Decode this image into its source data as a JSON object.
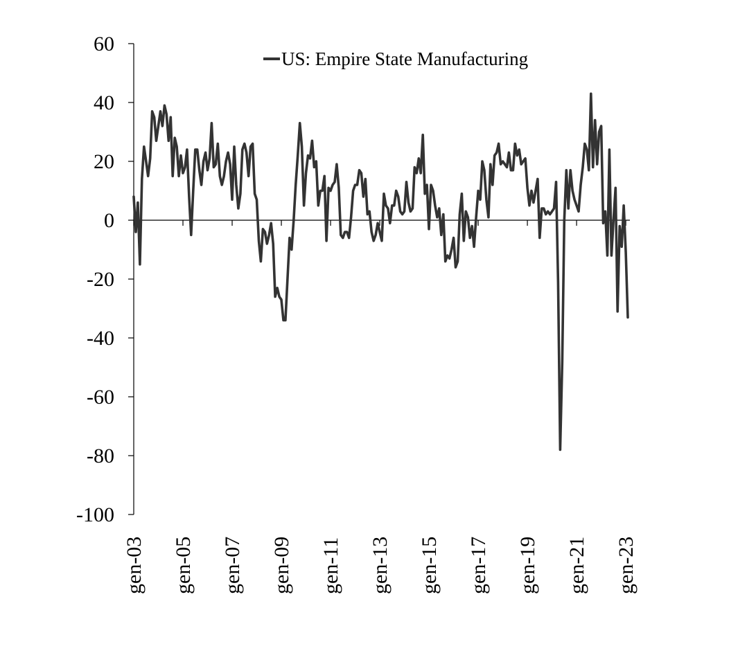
{
  "chart_data": {
    "type": "line",
    "title": "",
    "xlabel": "",
    "ylabel": "",
    "ylim": [
      -100,
      60
    ],
    "yticks": [
      60,
      40,
      20,
      0,
      -20,
      -40,
      -60,
      -80,
      -100
    ],
    "xlim": [
      "2003-01",
      "2023-03"
    ],
    "xticks": [
      "gen-03",
      "gen-05",
      "gen-07",
      "gen-09",
      "gen-11",
      "gen-13",
      "gen-15",
      "gen-17",
      "gen-19",
      "gen-21",
      "gen-23"
    ],
    "grid": false,
    "legend_position": "top",
    "series": [
      {
        "name": "US: Empire State Manufacturing",
        "color": "#333333",
        "points": [
          [
            "2003-01",
            8
          ],
          [
            "2003-02",
            -4
          ],
          [
            "2003-03",
            6
          ],
          [
            "2003-04",
            -15
          ],
          [
            "2003-05",
            14
          ],
          [
            "2003-06",
            25
          ],
          [
            "2003-07",
            20
          ],
          [
            "2003-08",
            15
          ],
          [
            "2003-09",
            21
          ],
          [
            "2003-10",
            37
          ],
          [
            "2003-11",
            35
          ],
          [
            "2003-12",
            27
          ],
          [
            "2004-01",
            32
          ],
          [
            "2004-02",
            37
          ],
          [
            "2004-03",
            32
          ],
          [
            "2004-04",
            39
          ],
          [
            "2004-05",
            36
          ],
          [
            "2004-06",
            27
          ],
          [
            "2004-07",
            35
          ],
          [
            "2004-08",
            15
          ],
          [
            "2004-09",
            28
          ],
          [
            "2004-10",
            25
          ],
          [
            "2004-11",
            15
          ],
          [
            "2004-12",
            22
          ],
          [
            "2005-01",
            16
          ],
          [
            "2005-02",
            18
          ],
          [
            "2005-03",
            24
          ],
          [
            "2005-04",
            8
          ],
          [
            "2005-05",
            -5
          ],
          [
            "2005-06",
            10
          ],
          [
            "2005-07",
            24
          ],
          [
            "2005-08",
            24
          ],
          [
            "2005-09",
            17
          ],
          [
            "2005-10",
            12
          ],
          [
            "2005-11",
            20
          ],
          [
            "2005-12",
            23
          ],
          [
            "2006-01",
            17
          ],
          [
            "2006-02",
            21
          ],
          [
            "2006-03",
            33
          ],
          [
            "2006-04",
            18
          ],
          [
            "2006-05",
            19
          ],
          [
            "2006-06",
            26
          ],
          [
            "2006-07",
            15
          ],
          [
            "2006-08",
            12
          ],
          [
            "2006-09",
            15
          ],
          [
            "2006-10",
            20
          ],
          [
            "2006-11",
            23
          ],
          [
            "2006-12",
            19
          ],
          [
            "2007-01",
            7
          ],
          [
            "2007-02",
            25
          ],
          [
            "2007-03",
            12
          ],
          [
            "2007-04",
            4
          ],
          [
            "2007-05",
            9
          ],
          [
            "2007-06",
            24
          ],
          [
            "2007-07",
            26
          ],
          [
            "2007-08",
            23
          ],
          [
            "2007-09",
            15
          ],
          [
            "2007-10",
            25
          ],
          [
            "2007-11",
            26
          ],
          [
            "2007-12",
            9
          ],
          [
            "2008-01",
            7
          ],
          [
            "2008-02",
            -7
          ],
          [
            "2008-03",
            -14
          ],
          [
            "2008-04",
            -3
          ],
          [
            "2008-05",
            -4
          ],
          [
            "2008-06",
            -8
          ],
          [
            "2008-07",
            -5
          ],
          [
            "2008-08",
            -1
          ],
          [
            "2008-09",
            -8
          ],
          [
            "2008-10",
            -26
          ],
          [
            "2008-11",
            -23
          ],
          [
            "2008-12",
            -26
          ],
          [
            "2009-01",
            -27
          ],
          [
            "2009-02",
            -34
          ],
          [
            "2009-03",
            -34
          ],
          [
            "2009-04",
            -20
          ],
          [
            "2009-05",
            -6
          ],
          [
            "2009-06",
            -10
          ],
          [
            "2009-07",
            0
          ],
          [
            "2009-08",
            12
          ],
          [
            "2009-09",
            22
          ],
          [
            "2009-10",
            33
          ],
          [
            "2009-11",
            25
          ],
          [
            "2009-12",
            5
          ],
          [
            "2010-01",
            16
          ],
          [
            "2010-02",
            22
          ],
          [
            "2010-03",
            21
          ],
          [
            "2010-04",
            27
          ],
          [
            "2010-05",
            18
          ],
          [
            "2010-06",
            20
          ],
          [
            "2010-07",
            5
          ],
          [
            "2010-08",
            10
          ],
          [
            "2010-09",
            10
          ],
          [
            "2010-10",
            15
          ],
          [
            "2010-11",
            -7
          ],
          [
            "2010-12",
            11
          ],
          [
            "2011-01",
            10
          ],
          [
            "2011-02",
            12
          ],
          [
            "2011-03",
            13
          ],
          [
            "2011-04",
            19
          ],
          [
            "2011-05",
            11
          ],
          [
            "2011-06",
            -5
          ],
          [
            "2011-07",
            -6
          ],
          [
            "2011-08",
            -4
          ],
          [
            "2011-09",
            -4
          ],
          [
            "2011-10",
            -6
          ],
          [
            "2011-11",
            1
          ],
          [
            "2011-12",
            10
          ],
          [
            "2012-01",
            12
          ],
          [
            "2012-02",
            12
          ],
          [
            "2012-03",
            17
          ],
          [
            "2012-04",
            16
          ],
          [
            "2012-05",
            8
          ],
          [
            "2012-06",
            14
          ],
          [
            "2012-07",
            2
          ],
          [
            "2012-08",
            3
          ],
          [
            "2012-09",
            -4
          ],
          [
            "2012-10",
            -7
          ],
          [
            "2012-11",
            -5
          ],
          [
            "2012-12",
            -1
          ],
          [
            "2013-01",
            -4
          ],
          [
            "2013-02",
            -7
          ],
          [
            "2013-03",
            9
          ],
          [
            "2013-04",
            5
          ],
          [
            "2013-05",
            4
          ],
          [
            "2013-06",
            -1
          ],
          [
            "2013-07",
            5
          ],
          [
            "2013-08",
            5
          ],
          [
            "2013-09",
            10
          ],
          [
            "2013-10",
            8
          ],
          [
            "2013-11",
            3
          ],
          [
            "2013-12",
            2
          ],
          [
            "2014-01",
            3
          ],
          [
            "2014-02",
            13
          ],
          [
            "2014-03",
            6
          ],
          [
            "2014-04",
            3
          ],
          [
            "2014-05",
            4
          ],
          [
            "2014-06",
            18
          ],
          [
            "2014-07",
            16
          ],
          [
            "2014-08",
            21
          ],
          [
            "2014-09",
            16
          ],
          [
            "2014-10",
            29
          ],
          [
            "2014-11",
            9
          ],
          [
            "2014-12",
            12
          ],
          [
            "2015-01",
            -3
          ],
          [
            "2015-02",
            12
          ],
          [
            "2015-03",
            10
          ],
          [
            "2015-04",
            5
          ],
          [
            "2015-05",
            1
          ],
          [
            "2015-06",
            4
          ],
          [
            "2015-07",
            -5
          ],
          [
            "2015-08",
            2
          ],
          [
            "2015-09",
            -14
          ],
          [
            "2015-10",
            -12
          ],
          [
            "2015-11",
            -13
          ],
          [
            "2015-12",
            -10
          ],
          [
            "2016-01",
            -6
          ],
          [
            "2016-02",
            -16
          ],
          [
            "2016-03",
            -14
          ],
          [
            "2016-04",
            2
          ],
          [
            "2016-05",
            9
          ],
          [
            "2016-06",
            -7
          ],
          [
            "2016-07",
            3
          ],
          [
            "2016-08",
            1
          ],
          [
            "2016-09",
            -6
          ],
          [
            "2016-10",
            -2
          ],
          [
            "2016-11",
            -9
          ],
          [
            "2016-12",
            1
          ],
          [
            "2017-01",
            10
          ],
          [
            "2017-02",
            7
          ],
          [
            "2017-03",
            20
          ],
          [
            "2017-04",
            17
          ],
          [
            "2017-05",
            7
          ],
          [
            "2017-06",
            1
          ],
          [
            "2017-07",
            19
          ],
          [
            "2017-08",
            12
          ],
          [
            "2017-09",
            22
          ],
          [
            "2017-10",
            23
          ],
          [
            "2017-11",
            26
          ],
          [
            "2017-12",
            19
          ],
          [
            "2018-01",
            20
          ],
          [
            "2018-02",
            19
          ],
          [
            "2018-03",
            18
          ],
          [
            "2018-04",
            23
          ],
          [
            "2018-05",
            17
          ],
          [
            "2018-06",
            17
          ],
          [
            "2018-07",
            26
          ],
          [
            "2018-08",
            22
          ],
          [
            "2018-09",
            24
          ],
          [
            "2018-10",
            19
          ],
          [
            "2018-11",
            20
          ],
          [
            "2018-12",
            21
          ],
          [
            "2019-01",
            11
          ],
          [
            "2019-02",
            5
          ],
          [
            "2019-03",
            10
          ],
          [
            "2019-04",
            6
          ],
          [
            "2019-05",
            10
          ],
          [
            "2019-06",
            14
          ],
          [
            "2019-07",
            -6
          ],
          [
            "2019-08",
            4
          ],
          [
            "2019-09",
            4
          ],
          [
            "2019-10",
            2
          ],
          [
            "2019-11",
            3
          ],
          [
            "2019-12",
            2
          ],
          [
            "2020-01",
            3
          ],
          [
            "2020-02",
            4
          ],
          [
            "2020-03",
            13
          ],
          [
            "2020-04",
            -21
          ],
          [
            "2020-05",
            -78
          ],
          [
            "2020-06",
            -48
          ],
          [
            "2020-07",
            0
          ],
          [
            "2020-08",
            17
          ],
          [
            "2020-09",
            4
          ],
          [
            "2020-10",
            17
          ],
          [
            "2020-11",
            10
          ],
          [
            "2020-12",
            7
          ],
          [
            "2021-01",
            5
          ],
          [
            "2021-02",
            3
          ],
          [
            "2021-03",
            12
          ],
          [
            "2021-04",
            18
          ],
          [
            "2021-05",
            26
          ],
          [
            "2021-06",
            24
          ],
          [
            "2021-07",
            17
          ],
          [
            "2021-08",
            43
          ],
          [
            "2021-09",
            18
          ],
          [
            "2021-10",
            34
          ],
          [
            "2021-11",
            19
          ],
          [
            "2021-12",
            30
          ],
          [
            "2022-01",
            32
          ],
          [
            "2022-02",
            -1
          ],
          [
            "2022-03",
            3
          ],
          [
            "2022-04",
            -12
          ],
          [
            "2022-05",
            24
          ],
          [
            "2022-06",
            -12
          ],
          [
            "2022-07",
            0
          ],
          [
            "2022-08",
            11
          ],
          [
            "2022-09",
            -31
          ],
          [
            "2022-10",
            -2
          ],
          [
            "2022-11",
            -9
          ],
          [
            "2022-12",
            5
          ],
          [
            "2023-01",
            -11
          ],
          [
            "2023-02",
            -33
          ]
        ]
      }
    ]
  }
}
